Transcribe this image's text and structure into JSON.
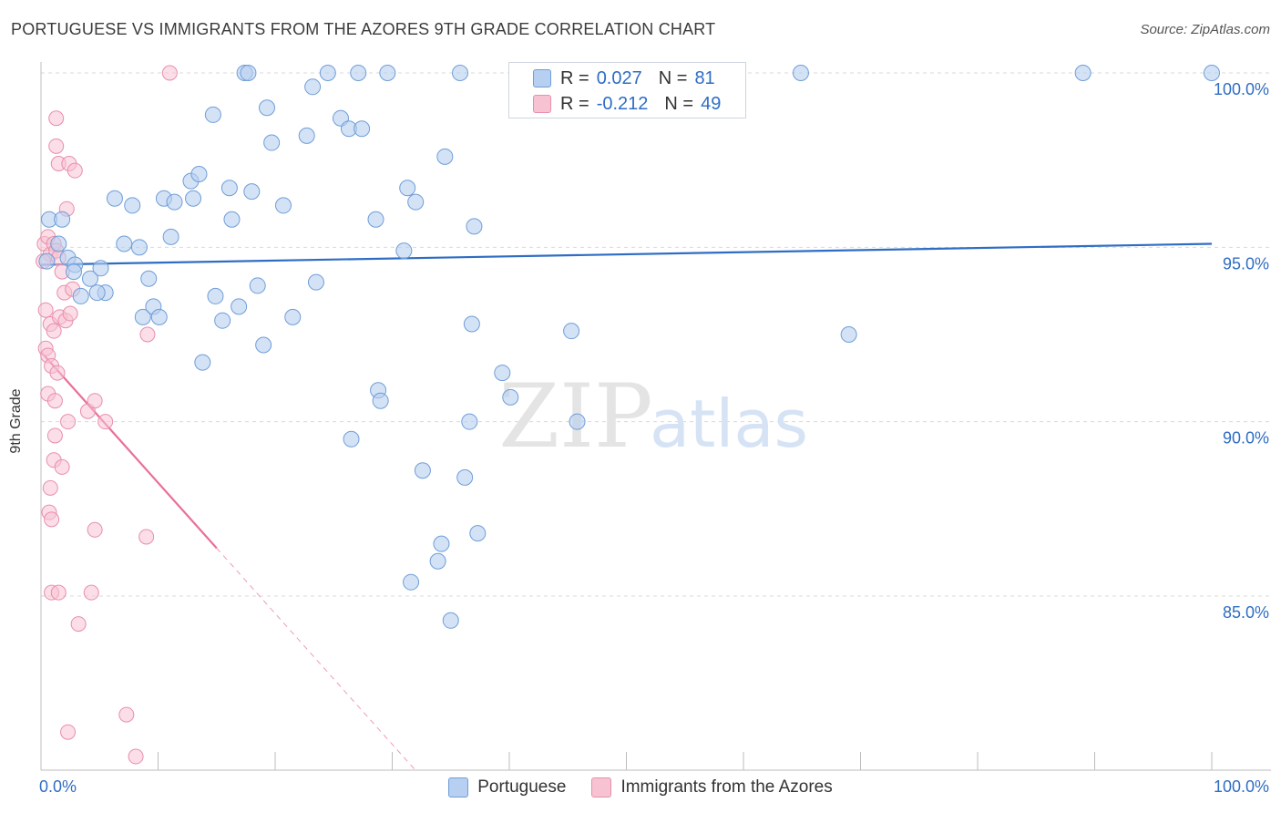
{
  "header": {
    "title": "PORTUGUESE VS IMMIGRANTS FROM THE AZORES 9TH GRADE CORRELATION CHART",
    "source": "Source: ZipAtlas.com"
  },
  "watermark": {
    "zip": "ZIP",
    "atlas": "atlas"
  },
  "legend_top": {
    "rows": [
      {
        "label": "R =",
        "r": "0.027",
        "n_label": "N =",
        "n": "81"
      },
      {
        "label": "R =",
        "r": "-0.212",
        "n_label": "N =",
        "n": "49"
      }
    ]
  },
  "legend_bottom": {
    "items": [
      {
        "label": "Portuguese"
      },
      {
        "label": "Immigrants from the Azores"
      }
    ]
  },
  "colors": {
    "blue_fill": "#b7cff0",
    "blue_stroke": "#6f9ed8",
    "blue_line": "#2f6dc4",
    "pink_fill": "#f7c3d3",
    "pink_stroke": "#e88fab",
    "pink_line": "#e8709a",
    "grid": "#d9d9d9",
    "tick_text": "#2f6dc4"
  },
  "chart_data": {
    "type": "scatter",
    "title": "PORTUGUESE VS IMMIGRANTS FROM THE AZORES 9TH GRADE CORRELATION CHART",
    "xlabel": "",
    "ylabel": "9th Grade",
    "xlim": [
      0,
      100
    ],
    "ylim": [
      80.0,
      100.5
    ],
    "x_tick_labels": [
      "0.0%",
      "100.0%"
    ],
    "y_ticks": [
      85,
      90,
      95,
      100
    ],
    "y_tick_labels": [
      "85.0%",
      "90.0%",
      "95.0%",
      "100.0%"
    ],
    "series": [
      {
        "name": "Portuguese",
        "r": 0.027,
        "n": 81,
        "trend": {
          "x": [
            0,
            100
          ],
          "y": [
            94.5,
            95.1
          ],
          "solid_to": 100
        },
        "points": [
          [
            0.7,
            95.8
          ],
          [
            0.5,
            94.6
          ],
          [
            1.8,
            95.8
          ],
          [
            1.5,
            95.1
          ],
          [
            2.3,
            94.7
          ],
          [
            2.9,
            94.5
          ],
          [
            3.4,
            93.6
          ],
          [
            2.8,
            94.3
          ],
          [
            4.2,
            94.1
          ],
          [
            5.1,
            94.4
          ],
          [
            5.5,
            93.7
          ],
          [
            4.8,
            93.7
          ],
          [
            6.3,
            96.4
          ],
          [
            7.1,
            95.1
          ],
          [
            7.8,
            96.2
          ],
          [
            8.4,
            95.0
          ],
          [
            8.7,
            93.0
          ],
          [
            9.2,
            94.1
          ],
          [
            9.6,
            93.3
          ],
          [
            10.1,
            93.0
          ],
          [
            10.5,
            96.4
          ],
          [
            11.1,
            95.3
          ],
          [
            11.4,
            96.3
          ],
          [
            12.8,
            96.9
          ],
          [
            13.0,
            96.4
          ],
          [
            13.5,
            97.1
          ],
          [
            13.8,
            91.7
          ],
          [
            14.7,
            98.8
          ],
          [
            14.9,
            93.6
          ],
          [
            15.5,
            92.9
          ],
          [
            16.1,
            96.7
          ],
          [
            16.3,
            95.8
          ],
          [
            16.9,
            93.3
          ],
          [
            17.4,
            100.0
          ],
          [
            17.7,
            100.0
          ],
          [
            18.0,
            96.6
          ],
          [
            18.5,
            93.9
          ],
          [
            19.0,
            92.2
          ],
          [
            19.3,
            99.0
          ],
          [
            19.7,
            98.0
          ],
          [
            20.7,
            96.2
          ],
          [
            21.5,
            93.0
          ],
          [
            22.7,
            98.2
          ],
          [
            23.2,
            99.6
          ],
          [
            23.5,
            94.0
          ],
          [
            24.5,
            100.0
          ],
          [
            25.6,
            98.7
          ],
          [
            26.3,
            98.4
          ],
          [
            26.5,
            89.5
          ],
          [
            27.1,
            100.0
          ],
          [
            27.4,
            98.4
          ],
          [
            28.6,
            95.8
          ],
          [
            28.8,
            90.9
          ],
          [
            29.0,
            90.6
          ],
          [
            29.6,
            100.0
          ],
          [
            31.0,
            94.9
          ],
          [
            31.3,
            96.7
          ],
          [
            31.6,
            85.4
          ],
          [
            32.0,
            96.3
          ],
          [
            32.6,
            88.6
          ],
          [
            33.9,
            86.0
          ],
          [
            34.2,
            86.5
          ],
          [
            34.5,
            97.6
          ],
          [
            35.0,
            84.3
          ],
          [
            35.8,
            100.0
          ],
          [
            36.2,
            88.4
          ],
          [
            36.6,
            90.0
          ],
          [
            36.8,
            92.8
          ],
          [
            37.0,
            95.6
          ],
          [
            37.3,
            86.8
          ],
          [
            39.4,
            91.4
          ],
          [
            40.1,
            90.7
          ],
          [
            45.3,
            92.6
          ],
          [
            45.8,
            90.0
          ],
          [
            64.9,
            100.0
          ],
          [
            69.0,
            92.5
          ],
          [
            89.0,
            100.0
          ],
          [
            100.0,
            100.0
          ]
        ]
      },
      {
        "name": "Immigrants from the Azores",
        "r": -0.212,
        "n": 49,
        "trend": {
          "x": [
            0,
            32.0
          ],
          "y": [
            92.0,
            80.0
          ],
          "solid_to": 15.0
        },
        "points": [
          [
            0.3,
            95.1
          ],
          [
            0.6,
            95.3
          ],
          [
            0.8,
            94.8
          ],
          [
            1.1,
            95.1
          ],
          [
            1.3,
            94.9
          ],
          [
            1.5,
            94.7
          ],
          [
            1.8,
            94.3
          ],
          [
            2.0,
            93.7
          ],
          [
            0.4,
            93.2
          ],
          [
            0.8,
            92.8
          ],
          [
            1.1,
            92.6
          ],
          [
            1.6,
            93.0
          ],
          [
            2.1,
            92.9
          ],
          [
            2.5,
            93.1
          ],
          [
            2.7,
            93.8
          ],
          [
            0.4,
            92.1
          ],
          [
            0.6,
            91.9
          ],
          [
            0.9,
            91.6
          ],
          [
            1.4,
            91.4
          ],
          [
            0.6,
            90.8
          ],
          [
            1.2,
            90.6
          ],
          [
            2.3,
            90.0
          ],
          [
            4.0,
            90.3
          ],
          [
            4.6,
            90.6
          ],
          [
            5.5,
            90.0
          ],
          [
            1.2,
            89.6
          ],
          [
            1.1,
            88.9
          ],
          [
            1.8,
            88.7
          ],
          [
            0.8,
            88.1
          ],
          [
            0.7,
            87.4
          ],
          [
            0.9,
            87.2
          ],
          [
            4.6,
            86.9
          ],
          [
            9.0,
            86.7
          ],
          [
            0.9,
            85.1
          ],
          [
            1.5,
            85.1
          ],
          [
            4.3,
            85.1
          ],
          [
            3.2,
            84.2
          ],
          [
            7.3,
            81.6
          ],
          [
            2.3,
            81.1
          ],
          [
            8.1,
            80.4
          ],
          [
            1.3,
            98.7
          ],
          [
            1.3,
            97.9
          ],
          [
            1.5,
            97.4
          ],
          [
            2.4,
            97.4
          ],
          [
            2.9,
            97.2
          ],
          [
            2.2,
            96.1
          ],
          [
            9.1,
            92.5
          ],
          [
            11.0,
            100.0
          ],
          [
            0.2,
            94.6
          ]
        ]
      }
    ]
  }
}
